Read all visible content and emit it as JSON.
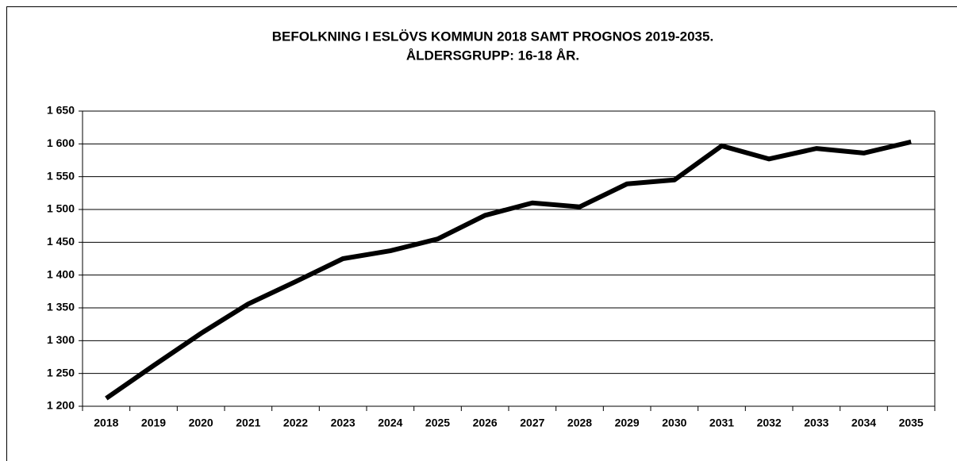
{
  "chart_data": {
    "type": "line",
    "title": "BEFOLKNING I ESLÖVS KOMMUN 2018 SAMT PROGNOS 2019-2035.",
    "subtitle": "ÅLDERSGRUPP: 16-18 ÅR.",
    "categories": [
      "2018",
      "2019",
      "2020",
      "2021",
      "2022",
      "2023",
      "2024",
      "2025",
      "2026",
      "2027",
      "2028",
      "2029",
      "2030",
      "2031",
      "2032",
      "2033",
      "2034",
      "2035"
    ],
    "series": [
      {
        "name": "16-18 år",
        "color": "#000000",
        "values": [
          1212,
          1262,
          1311,
          1356,
          1390,
          1425,
          1437,
          1455,
          1491,
          1510,
          1504,
          1539,
          1545,
          1597,
          1577,
          1593,
          1586,
          1603
        ]
      }
    ],
    "ylim": [
      1200,
      1650
    ],
    "yticks": [
      {
        "value": 1200,
        "label": "1 200"
      },
      {
        "value": 1250,
        "label": "1 250"
      },
      {
        "value": 1300,
        "label": "1 300"
      },
      {
        "value": 1350,
        "label": "1 350"
      },
      {
        "value": 1400,
        "label": "1 400"
      },
      {
        "value": 1450,
        "label": "1 450"
      },
      {
        "value": 1500,
        "label": "1 500"
      },
      {
        "value": 1550,
        "label": "1 550"
      },
      {
        "value": 1600,
        "label": "1 600"
      },
      {
        "value": 1650,
        "label": "1 650"
      }
    ],
    "grid": true,
    "legend": false
  }
}
